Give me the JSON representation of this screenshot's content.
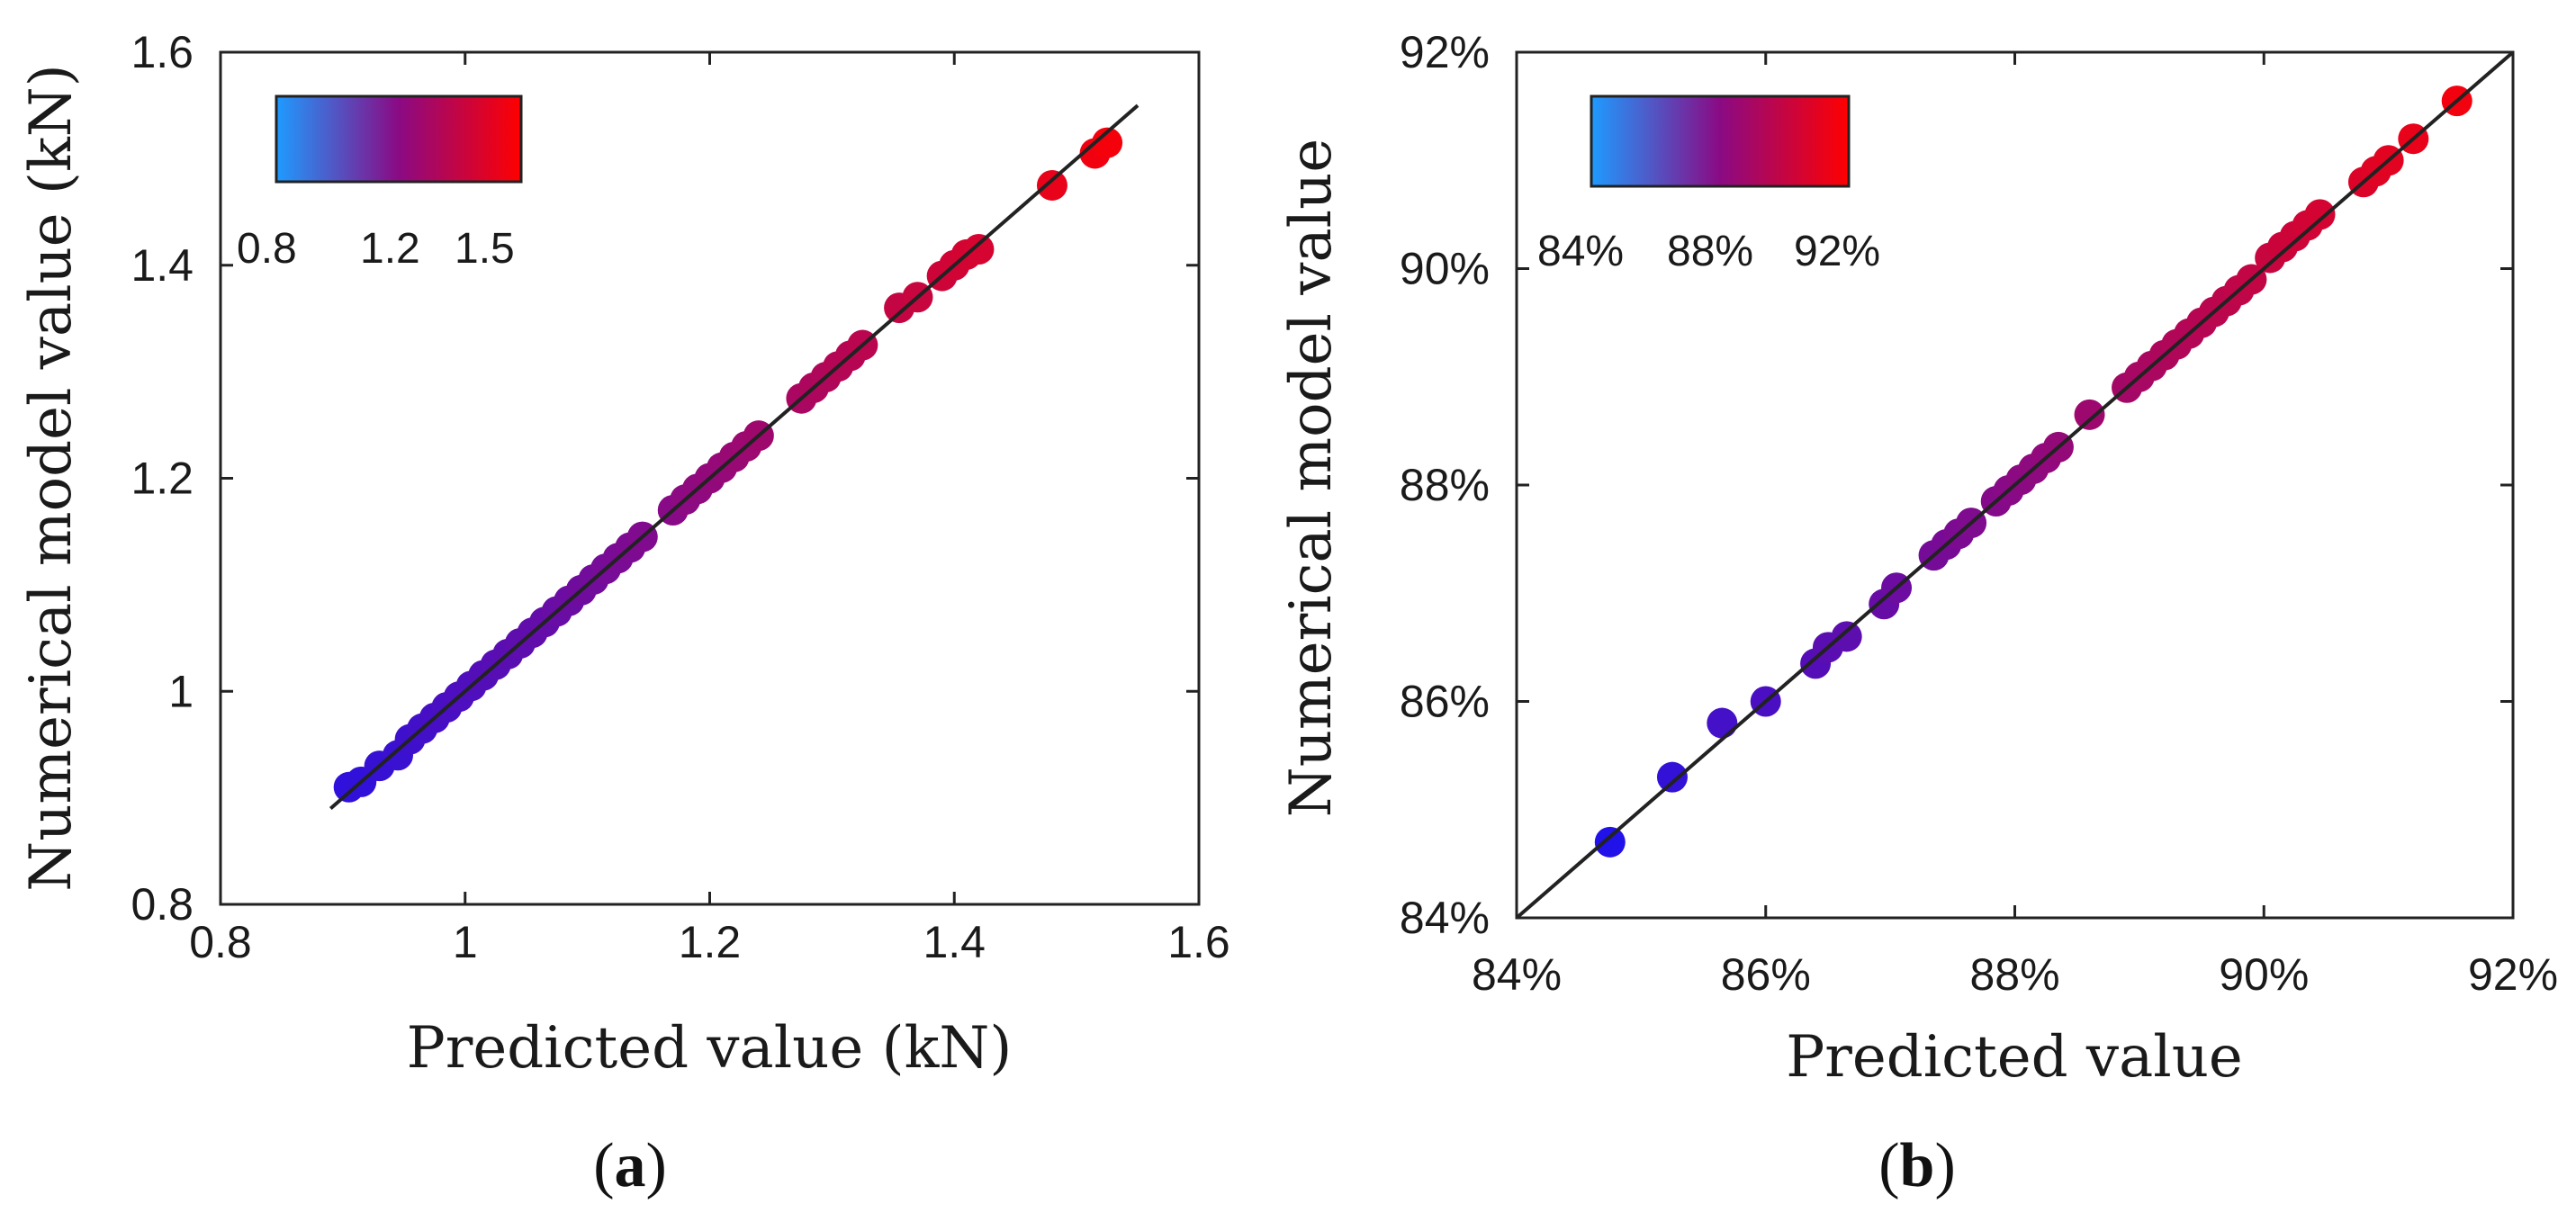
{
  "colors": {
    "low": "#1e9bff",
    "mid": "#8a0a84",
    "high": "#ff0000",
    "axis": "#222222"
  },
  "chart_data": [
    {
      "type": "scatter",
      "panel": "(a)",
      "panel_letter": "a",
      "xlabel": "Predicted value (kN)",
      "ylabel": "Numerical model value (kN)",
      "xlim": [
        0.8,
        1.6
      ],
      "ylim": [
        0.8,
        1.6
      ],
      "x_ticks": [
        0.8,
        1.0,
        1.2,
        1.4,
        1.6
      ],
      "x_tick_labels": [
        "0.8",
        "1",
        "1.2",
        "1.4",
        "1.6"
      ],
      "y_ticks": [
        0.8,
        1.0,
        1.2,
        1.4,
        1.6
      ],
      "y_tick_labels": [
        "0.8",
        "1",
        "1.2",
        "1.4",
        "1.6"
      ],
      "reference_line": {
        "from": [
          0.89,
          0.89
        ],
        "to": [
          1.55,
          1.55
        ]
      },
      "colorbar": {
        "range": [
          0.8,
          1.55
        ],
        "ticks": [
          0.8,
          1.2,
          1.5
        ],
        "tick_labels": [
          "0.8",
          "1.2",
          "1.5"
        ],
        "location": "top-left"
      },
      "x": [
        0.905,
        0.915,
        0.93,
        0.945,
        0.955,
        0.965,
        0.975,
        0.985,
        0.995,
        1.005,
        1.015,
        1.025,
        1.035,
        1.045,
        1.055,
        1.065,
        1.075,
        1.085,
        1.095,
        1.105,
        1.115,
        1.125,
        1.135,
        1.145,
        1.17,
        1.18,
        1.19,
        1.2,
        1.21,
        1.22,
        1.23,
        1.24,
        1.275,
        1.285,
        1.295,
        1.305,
        1.315,
        1.325,
        1.355,
        1.37,
        1.39,
        1.4,
        1.41,
        1.42,
        1.48,
        1.515,
        1.525
      ],
      "y": [
        0.91,
        0.915,
        0.93,
        0.94,
        0.955,
        0.965,
        0.975,
        0.985,
        0.995,
        1.005,
        1.015,
        1.025,
        1.035,
        1.045,
        1.055,
        1.065,
        1.075,
        1.085,
        1.095,
        1.105,
        1.115,
        1.125,
        1.135,
        1.145,
        1.17,
        1.18,
        1.19,
        1.2,
        1.21,
        1.22,
        1.23,
        1.24,
        1.275,
        1.285,
        1.295,
        1.305,
        1.315,
        1.325,
        1.36,
        1.37,
        1.39,
        1.4,
        1.41,
        1.415,
        1.475,
        1.505,
        1.515
      ]
    },
    {
      "type": "scatter",
      "panel": "(b)",
      "panel_letter": "b",
      "xlabel": "Predicted value",
      "ylabel": "Numerical model value",
      "xlim": [
        84,
        92
      ],
      "ylim": [
        84,
        92
      ],
      "x_ticks": [
        84,
        86,
        88,
        90,
        92
      ],
      "x_tick_labels": [
        "84%",
        "86%",
        "88%",
        "90%",
        "92%"
      ],
      "y_ticks": [
        84,
        86,
        88,
        90,
        92
      ],
      "y_tick_labels": [
        "84%",
        "86%",
        "88%",
        "90%",
        "92%"
      ],
      "reference_line": {
        "from": [
          84,
          84
        ],
        "to": [
          92,
          92
        ]
      },
      "colorbar": {
        "range": [
          84,
          92
        ],
        "ticks": [
          84,
          88,
          92
        ],
        "tick_labels": [
          "84%",
          "88%",
          "92%"
        ],
        "location": "top-left"
      },
      "x": [
        84.75,
        85.25,
        85.65,
        86.0,
        86.4,
        86.5,
        86.65,
        86.95,
        87.05,
        87.35,
        87.45,
        87.55,
        87.65,
        87.85,
        87.95,
        88.05,
        88.15,
        88.25,
        88.35,
        88.6,
        88.9,
        89.0,
        89.1,
        89.2,
        89.3,
        89.4,
        89.5,
        89.6,
        89.7,
        89.8,
        89.9,
        90.05,
        90.15,
        90.25,
        90.35,
        90.45,
        90.8,
        90.9,
        91.0,
        91.2,
        91.55
      ],
      "y": [
        84.7,
        85.3,
        85.8,
        86.0,
        86.35,
        86.5,
        86.6,
        86.9,
        87.05,
        87.35,
        87.45,
        87.55,
        87.65,
        87.85,
        87.95,
        88.05,
        88.15,
        88.25,
        88.35,
        88.65,
        88.9,
        89.0,
        89.1,
        89.2,
        89.3,
        89.4,
        89.5,
        89.6,
        89.7,
        89.8,
        89.9,
        90.1,
        90.2,
        90.3,
        90.4,
        90.5,
        90.8,
        90.9,
        91.0,
        91.2,
        91.55
      ]
    }
  ]
}
